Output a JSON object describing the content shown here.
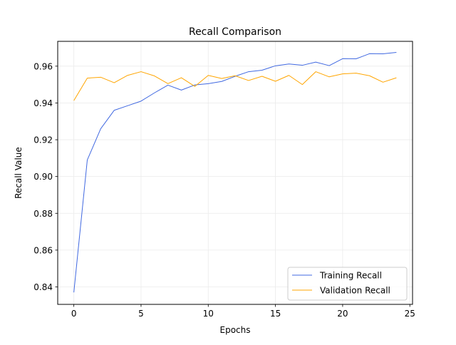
{
  "colors": {
    "training": "#4169e1",
    "validation": "#ffa500",
    "grid": "#ebebeb",
    "axis": "#000000",
    "legend_border": "#cccccc"
  },
  "chart_data": {
    "type": "line",
    "title": "Recall Comparison",
    "xlabel": "Epochs",
    "ylabel": "Recall Value",
    "xlim": [
      -1.2,
      25.2
    ],
    "ylim": [
      0.8305,
      0.9735
    ],
    "grid": true,
    "legend_position": "lower-right",
    "x_ticks": [
      0,
      5,
      10,
      15,
      20,
      25
    ],
    "x_tick_labels": [
      "0",
      "5",
      "10",
      "15",
      "20",
      "25"
    ],
    "y_ticks": [
      0.84,
      0.86,
      0.88,
      0.9,
      0.92,
      0.94,
      0.96
    ],
    "y_tick_labels": [
      "0.84",
      "0.86",
      "0.88",
      "0.90",
      "0.92",
      "0.94",
      "0.96"
    ],
    "x": [
      0,
      1,
      2,
      3,
      4,
      5,
      6,
      7,
      8,
      9,
      10,
      11,
      12,
      13,
      14,
      15,
      16,
      17,
      18,
      19,
      20,
      21,
      22,
      23,
      24
    ],
    "series": [
      {
        "name": "Training Recall",
        "color_key": "training",
        "values": [
          0.837,
          0.909,
          0.926,
          0.936,
          0.9385,
          0.941,
          0.9455,
          0.9497,
          0.947,
          0.9498,
          0.9505,
          0.9517,
          0.9545,
          0.957,
          0.9578,
          0.9602,
          0.9612,
          0.9605,
          0.9622,
          0.9603,
          0.9641,
          0.964,
          0.9668,
          0.9667,
          0.9675
        ]
      },
      {
        "name": "Validation Recall",
        "color_key": "validation",
        "values": [
          0.9413,
          0.9535,
          0.954,
          0.951,
          0.955,
          0.957,
          0.9547,
          0.9505,
          0.9537,
          0.949,
          0.955,
          0.9533,
          0.9548,
          0.9522,
          0.9545,
          0.9518,
          0.955,
          0.95,
          0.957,
          0.9542,
          0.9558,
          0.9562,
          0.9548,
          0.9513,
          0.9537
        ]
      }
    ]
  }
}
